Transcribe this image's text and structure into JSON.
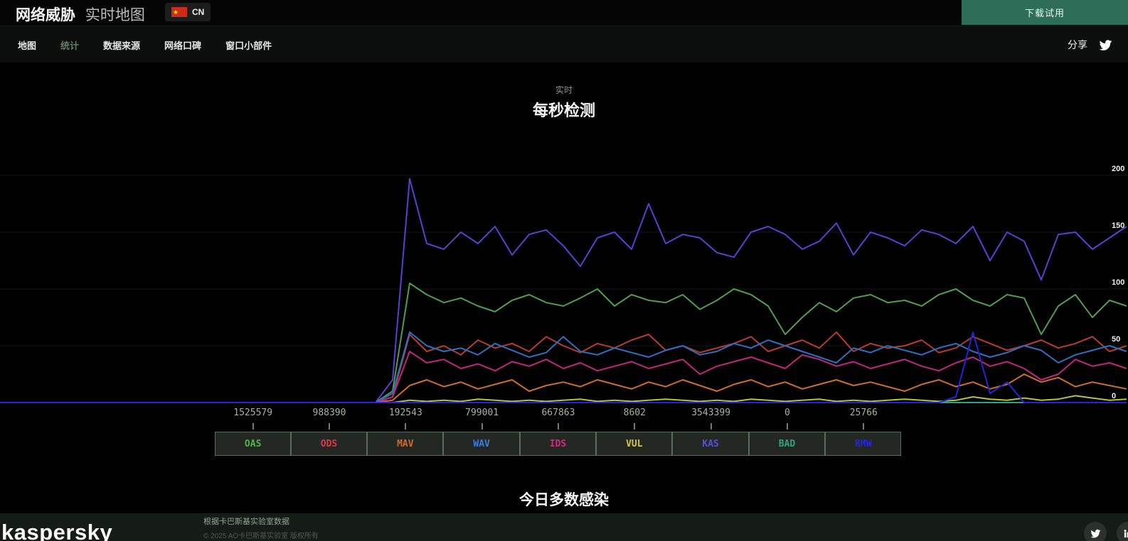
{
  "header": {
    "title_bold": "网络威胁",
    "title_light": "实时地图",
    "country_code": "CN",
    "flag_icon": "china-flag",
    "download_button": "下载试用",
    "download_button_color": "#2e6e59"
  },
  "nav": {
    "tabs": [
      {
        "label": "地图",
        "active": false
      },
      {
        "label": "统计",
        "active": true
      },
      {
        "label": "数据来源",
        "active": false
      },
      {
        "label": "网络口碑",
        "active": false
      },
      {
        "label": "窗口小部件",
        "active": false
      }
    ],
    "share_label": "分享",
    "active_color": "#66796b"
  },
  "chart": {
    "subtitle": "实时",
    "title": "每秒检测"
  },
  "chart_data": {
    "type": "line",
    "title": "每秒检测",
    "subtitle": "实时",
    "xlabel": "",
    "ylabel": "",
    "ylim": [
      0,
      210
    ],
    "yticks": [
      0,
      50,
      100,
      150,
      200
    ],
    "grid": "horizontal",
    "legend_position": "bottom",
    "x_axis_note": "unlabeled rolling time axis; first third of window has no data (all series at 0)",
    "point_spacing_px": 24,
    "lead_zero_points": 23,
    "series": [
      {
        "name": "KAS",
        "color": "#5a3fd0",
        "values": [
          20,
          197,
          140,
          135,
          150,
          140,
          155,
          130,
          148,
          152,
          138,
          120,
          145,
          150,
          135,
          175,
          140,
          148,
          145,
          132,
          128,
          150,
          155,
          148,
          135,
          142,
          158,
          130,
          150,
          145,
          138,
          152,
          148,
          140,
          155,
          125,
          150,
          142,
          108,
          148,
          150,
          135,
          145,
          155
        ]
      },
      {
        "name": "OAS",
        "color": "#4e9e4e",
        "values": [
          10,
          105,
          95,
          88,
          92,
          85,
          80,
          90,
          95,
          88,
          85,
          92,
          100,
          85,
          95,
          90,
          88,
          95,
          82,
          90,
          100,
          95,
          85,
          60,
          75,
          88,
          80,
          92,
          95,
          88,
          90,
          85,
          95,
          100,
          90,
          85,
          95,
          92,
          60,
          85,
          95,
          75,
          90,
          85
        ]
      },
      {
        "name": "ODS",
        "color": "#b93a30",
        "values": [
          5,
          60,
          45,
          50,
          42,
          55,
          48,
          52,
          45,
          58,
          50,
          44,
          52,
          48,
          55,
          60,
          46,
          50,
          44,
          48,
          52,
          58,
          45,
          50,
          55,
          48,
          62,
          45,
          52,
          48,
          50,
          55,
          44,
          48,
          58,
          52,
          46,
          50,
          55,
          48,
          52,
          58,
          45,
          50
        ]
      },
      {
        "name": "WAV",
        "color": "#2f6fc0",
        "values": [
          8,
          62,
          50,
          45,
          48,
          42,
          52,
          46,
          40,
          44,
          58,
          45,
          42,
          48,
          44,
          40,
          46,
          50,
          42,
          45,
          52,
          48,
          55,
          50,
          45,
          40,
          35,
          48,
          44,
          50,
          46,
          42,
          48,
          52,
          45,
          40,
          44,
          50,
          46,
          35,
          42,
          46,
          50,
          45
        ]
      },
      {
        "name": "IDS",
        "color": "#c0257f",
        "values": [
          5,
          45,
          35,
          38,
          30,
          34,
          28,
          36,
          32,
          38,
          30,
          35,
          28,
          32,
          36,
          30,
          34,
          38,
          25,
          32,
          36,
          40,
          35,
          30,
          42,
          38,
          32,
          36,
          30,
          34,
          38,
          32,
          28,
          35,
          40,
          32,
          36,
          30,
          20,
          25,
          38,
          32,
          35,
          30
        ]
      },
      {
        "name": "MAV",
        "color": "#cc6f2a",
        "values": [
          2,
          15,
          20,
          14,
          18,
          12,
          16,
          20,
          10,
          15,
          18,
          14,
          20,
          16,
          12,
          18,
          14,
          20,
          15,
          10,
          16,
          20,
          14,
          18,
          12,
          16,
          20,
          15,
          18,
          14,
          10,
          16,
          20,
          14,
          18,
          12,
          16,
          25,
          18,
          22,
          14,
          18,
          15,
          12
        ]
      },
      {
        "name": "VUL",
        "color": "#b8c23a",
        "values": [
          0,
          2,
          1,
          2,
          1,
          3,
          2,
          1,
          2,
          1,
          2,
          3,
          1,
          2,
          1,
          2,
          3,
          2,
          1,
          2,
          1,
          3,
          2,
          1,
          2,
          3,
          1,
          2,
          1,
          2,
          3,
          2,
          1,
          2,
          5,
          3,
          2,
          4,
          2,
          3,
          6,
          4,
          2,
          3
        ]
      },
      {
        "name": "BAD",
        "color": "#2fa37e",
        "values": [
          0,
          0,
          0,
          0,
          0,
          0,
          0,
          0,
          0,
          0,
          0,
          0,
          0,
          0,
          0,
          0,
          0,
          0,
          0,
          0,
          0,
          0,
          0,
          0,
          0,
          0,
          0,
          0,
          0,
          0,
          0,
          0,
          0,
          0,
          0,
          0,
          0,
          0,
          0,
          0,
          0,
          0,
          0,
          0
        ]
      },
      {
        "name": "RMW",
        "color": "#2424d6",
        "values": [
          0,
          0,
          0,
          0,
          0,
          0,
          0,
          0,
          0,
          0,
          0,
          0,
          0,
          0,
          0,
          0,
          0,
          0,
          0,
          0,
          0,
          0,
          0,
          0,
          0,
          0,
          0,
          0,
          0,
          0,
          0,
          0,
          0,
          5,
          62,
          8,
          18,
          0,
          0,
          0,
          0,
          0,
          0,
          0
        ]
      }
    ]
  },
  "legend": {
    "items": [
      {
        "code": "OAS",
        "count": "1525579",
        "color": "#4db54d"
      },
      {
        "code": "ODS",
        "count": "988390",
        "color": "#d63a4f"
      },
      {
        "code": "MAV",
        "count": "192543",
        "color": "#cc6b2e"
      },
      {
        "code": "WAV",
        "count": "799001",
        "color": "#3a7de0"
      },
      {
        "code": "IDS",
        "count": "667863",
        "color": "#d12a7e"
      },
      {
        "code": "VUL",
        "count": "8602",
        "color": "#d9c43a"
      },
      {
        "code": "KAS",
        "count": "3543399",
        "color": "#5a4fd8"
      },
      {
        "code": "BAD",
        "count": "0",
        "color": "#2fa37e"
      },
      {
        "code": "RMW",
        "count": "25766",
        "color": "#2626d8"
      }
    ]
  },
  "sections": {
    "next_title": "今日多数感染"
  },
  "footer": {
    "brand": "kaspersky",
    "credit_line1": "根据卡巴斯基实验室数据",
    "credit_line2": "© 2025 AO卡巴斯基实验室 版权所有",
    "social_icons": [
      "twitter-icon",
      "linkedin-icon"
    ]
  }
}
